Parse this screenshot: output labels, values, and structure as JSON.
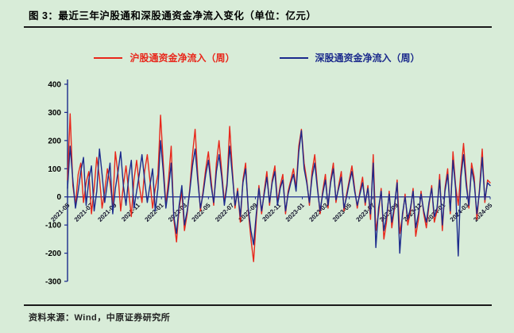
{
  "page": {
    "title": "图 3：最近三年沪股通和深股通资金净流入变化（单位：亿元）",
    "source": "资料来源：Wind，中原证券研究所",
    "background": "#d8ecd8"
  },
  "legend": {
    "items": [
      {
        "label": "沪股通资金净流入（周）",
        "color": "#e8271b"
      },
      {
        "label": "深股通资金净流入（周）",
        "color": "#1b2a8c"
      }
    ]
  },
  "chart_data": {
    "type": "line",
    "title": "最近三年沪股通和深股通资金净流入变化",
    "unit": "亿元",
    "xlabel": "",
    "ylabel": "亿元",
    "ylim": [
      -300,
      400
    ],
    "y_ticks": [
      400,
      300,
      200,
      100,
      0,
      -100,
      -200,
      -300
    ],
    "grid": false,
    "legend_position": "top",
    "axis_color": "#1b2a8c",
    "x_tick_labels": [
      "2021-05",
      "2021-07",
      "2021-09",
      "2021-11",
      "2022-01",
      "2022-03",
      "2022-05",
      "2022-07",
      "2022-09",
      "2022-11",
      "2023-01",
      "2023-03",
      "2023-05",
      "2023-07",
      "2023-09",
      "2023-11",
      "2024-01",
      "2024-03",
      "2024-05"
    ],
    "series": [
      {
        "name": "沪股通资金净流入（周）",
        "color": "#e8271b",
        "values": [
          60,
          295,
          40,
          -30,
          80,
          120,
          -20,
          50,
          90,
          -60,
          30,
          140,
          70,
          -40,
          20,
          100,
          50,
          -30,
          160,
          80,
          -50,
          40,
          110,
          20,
          -70,
          60,
          130,
          40,
          -20,
          90,
          150,
          60,
          -40,
          30,
          80,
          290,
          120,
          -30,
          60,
          180,
          -80,
          -160,
          -40,
          20,
          -120,
          -60,
          30,
          150,
          240,
          80,
          -50,
          20,
          100,
          160,
          60,
          -30,
          120,
          200,
          90,
          -20,
          50,
          250,
          100,
          -40,
          30,
          -90,
          60,
          120,
          -50,
          -150,
          -230,
          -80,
          40,
          -60,
          20,
          90,
          -30,
          60,
          110,
          -20,
          40,
          80,
          -60,
          20,
          60,
          100,
          30,
          180,
          240,
          120,
          60,
          -30,
          90,
          150,
          40,
          -60,
          20,
          80,
          -40,
          60,
          120,
          -20,
          40,
          90,
          -50,
          10,
          60,
          110,
          30,
          -40,
          20,
          70,
          -30,
          40,
          -80,
          150,
          -120,
          -60,
          30,
          -150,
          -90,
          20,
          -110,
          -40,
          60,
          -130,
          -70,
          10,
          -100,
          -50,
          30,
          -140,
          -80,
          20,
          -60,
          -110,
          -30,
          40,
          -90,
          -50,
          80,
          -120,
          30,
          100,
          -60,
          160,
          40,
          -30,
          90,
          190,
          60,
          -40,
          120,
          70,
          -80,
          30,
          170,
          -20,
          60,
          50
        ]
      },
      {
        "name": "深股通资金净流入（周）",
        "color": "#1b2a8c",
        "values": [
          30,
          180,
          60,
          -40,
          20,
          90,
          140,
          -30,
          60,
          110,
          -50,
          20,
          170,
          80,
          -20,
          50,
          120,
          -60,
          30,
          90,
          160,
          40,
          -30,
          70,
          130,
          -40,
          20,
          80,
          150,
          60,
          -20,
          40,
          100,
          -50,
          30,
          200,
          90,
          -40,
          30,
          120,
          -70,
          -130,
          -30,
          40,
          -100,
          -50,
          20,
          110,
          170,
          60,
          -40,
          10,
          80,
          130,
          40,
          -20,
          90,
          150,
          70,
          -30,
          40,
          180,
          80,
          -30,
          20,
          -70,
          50,
          100,
          -40,
          -120,
          -170,
          -60,
          30,
          -50,
          10,
          70,
          -20,
          50,
          90,
          -30,
          30,
          60,
          -50,
          10,
          50,
          80,
          20,
          160,
          235,
          100,
          50,
          -20,
          70,
          120,
          30,
          -50,
          10,
          60,
          -30,
          50,
          100,
          -10,
          30,
          70,
          -40,
          0,
          50,
          90,
          20,
          -30,
          10,
          50,
          -20,
          30,
          -60,
          120,
          -180,
          -40,
          20,
          -120,
          -70,
          10,
          -90,
          -30,
          50,
          -200,
          -60,
          0,
          -80,
          -40,
          20,
          -110,
          -60,
          10,
          -50,
          -90,
          -20,
          30,
          -70,
          -40,
          60,
          -100,
          20,
          80,
          -50,
          130,
          30,
          -210,
          70,
          150,
          40,
          -30,
          100,
          50,
          -60,
          20,
          140,
          -10,
          50,
          40
        ]
      }
    ]
  }
}
